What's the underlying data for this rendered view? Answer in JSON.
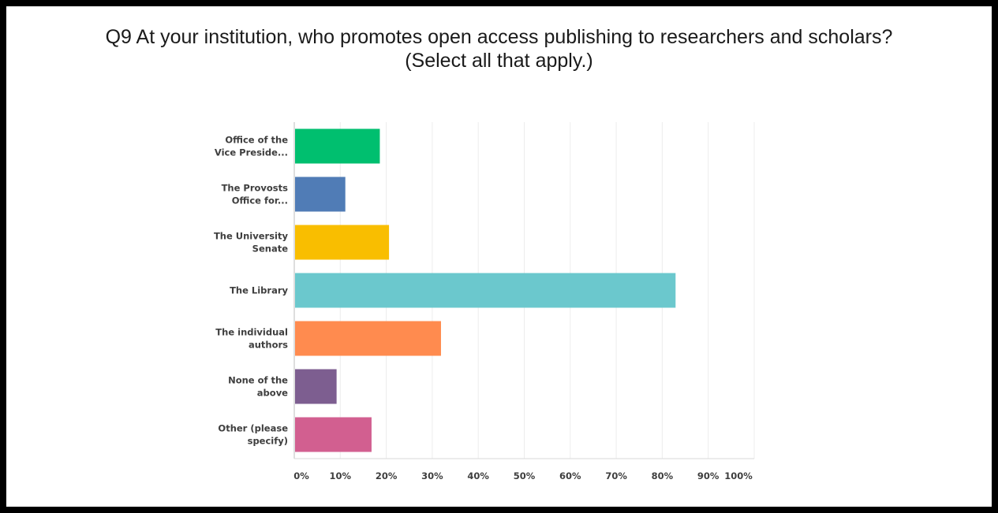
{
  "chart_data": {
    "type": "bar",
    "orientation": "horizontal",
    "title_lines": [
      "Q9 At your institution, who promotes open access publishing to researchers and scholars?",
      "(Select all that apply.)"
    ],
    "categories": [
      [
        "Office of the",
        "Vice Preside..."
      ],
      [
        "The Provosts",
        "Office for..."
      ],
      [
        "The University",
        "Senate"
      ],
      [
        "The Library"
      ],
      [
        "The individual",
        "authors"
      ],
      [
        "None of the",
        "above"
      ],
      [
        "Other (please",
        "specify)"
      ]
    ],
    "values": [
      18.6,
      11.1,
      20.6,
      82.9,
      31.9,
      9.2,
      16.8
    ],
    "colors": [
      "#00bf6f",
      "#507cb6",
      "#f9be00",
      "#6bc8cd",
      "#ff8b4f",
      "#7d5e90",
      "#d25f90"
    ],
    "xlim": [
      0,
      100
    ],
    "xticks": [
      "0%",
      "10%",
      "20%",
      "30%",
      "40%",
      "50%",
      "60%",
      "70%",
      "80%",
      "90%",
      "100%"
    ],
    "grid": true,
    "xlabel": "",
    "ylabel": ""
  }
}
